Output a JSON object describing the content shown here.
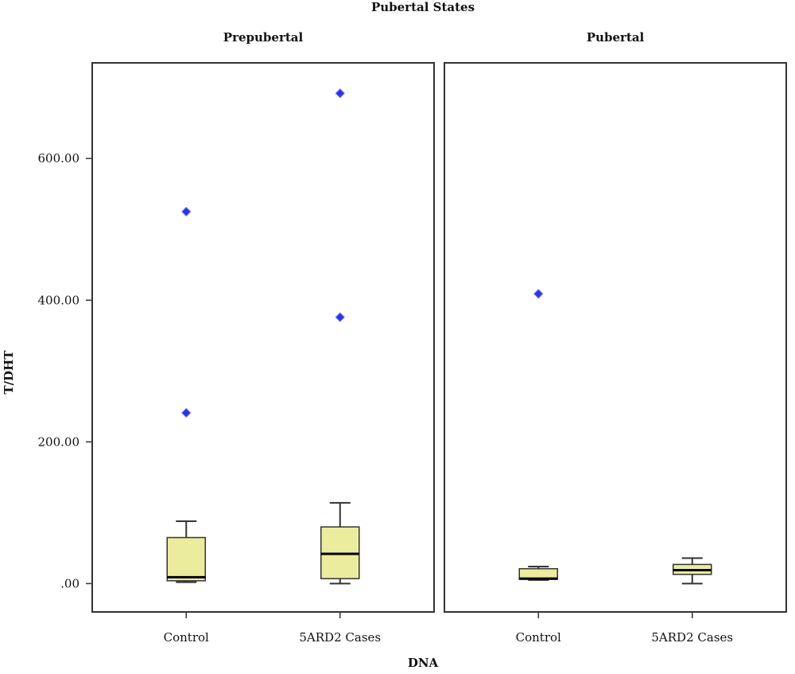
{
  "chart_data": {
    "type": "boxplot",
    "title": "Pubertal States",
    "xlabel": "DNA",
    "ylabel": "T/DHT",
    "ylim": [
      -40,
      735
    ],
    "y_ticks": [
      0,
      200,
      400,
      600
    ],
    "y_tick_labels": [
      ".00",
      "200.00",
      "400.00",
      "600.00"
    ],
    "categories": [
      "Control",
      "5ARD2 Cases"
    ],
    "colors": {
      "box_fill": "#ecec9e",
      "box_stroke": "#333333",
      "outlier": "#2a35e0",
      "frame": "#333333"
    },
    "grid": false,
    "panels": [
      {
        "label": "Prepubertal",
        "groups": [
          {
            "category": "Control",
            "whisker_low": 2,
            "q1": 4,
            "median": 9,
            "q3": 65,
            "whisker_high": 88,
            "outliers": [
              241,
              525
            ]
          },
          {
            "category": "5ARD2 Cases",
            "whisker_low": 0,
            "q1": 7,
            "median": 42,
            "q3": 80,
            "whisker_high": 114,
            "outliers": [
              376,
              692
            ]
          }
        ]
      },
      {
        "label": "Pubertal",
        "groups": [
          {
            "category": "Control",
            "whisker_low": 5,
            "q1": 6,
            "median": 7,
            "q3": 21,
            "whisker_high": 24,
            "outliers": [
              409
            ]
          },
          {
            "category": "5ARD2 Cases",
            "whisker_low": 0,
            "q1": 13,
            "median": 19,
            "q3": 27,
            "whisker_high": 36,
            "outliers": []
          }
        ]
      }
    ]
  }
}
